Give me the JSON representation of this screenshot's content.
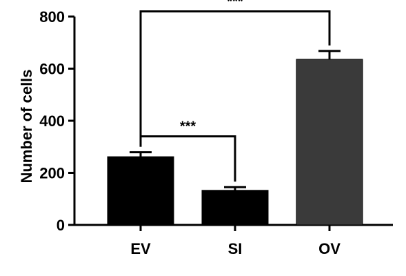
{
  "chart_data": {
    "type": "bar",
    "categories": [
      "EV",
      "SI",
      "OV"
    ],
    "values": [
      262,
      133,
      636
    ],
    "errors": [
      17,
      12,
      32
    ],
    "bar_colors": [
      "#000000",
      "#000000",
      "#3a3a3a"
    ],
    "ylabel": "Number of cells",
    "ylim": [
      0,
      800
    ],
    "yticks": [
      0,
      200,
      400,
      600,
      800
    ],
    "ytick_labels": [
      "0",
      "200",
      "400",
      "600",
      "800"
    ],
    "grid": false,
    "significance": [
      {
        "from": "EV",
        "to": "OV",
        "label": "***",
        "level": 820
      },
      {
        "from": "EV",
        "to": "SI",
        "label": "***",
        "level": 340
      }
    ]
  }
}
